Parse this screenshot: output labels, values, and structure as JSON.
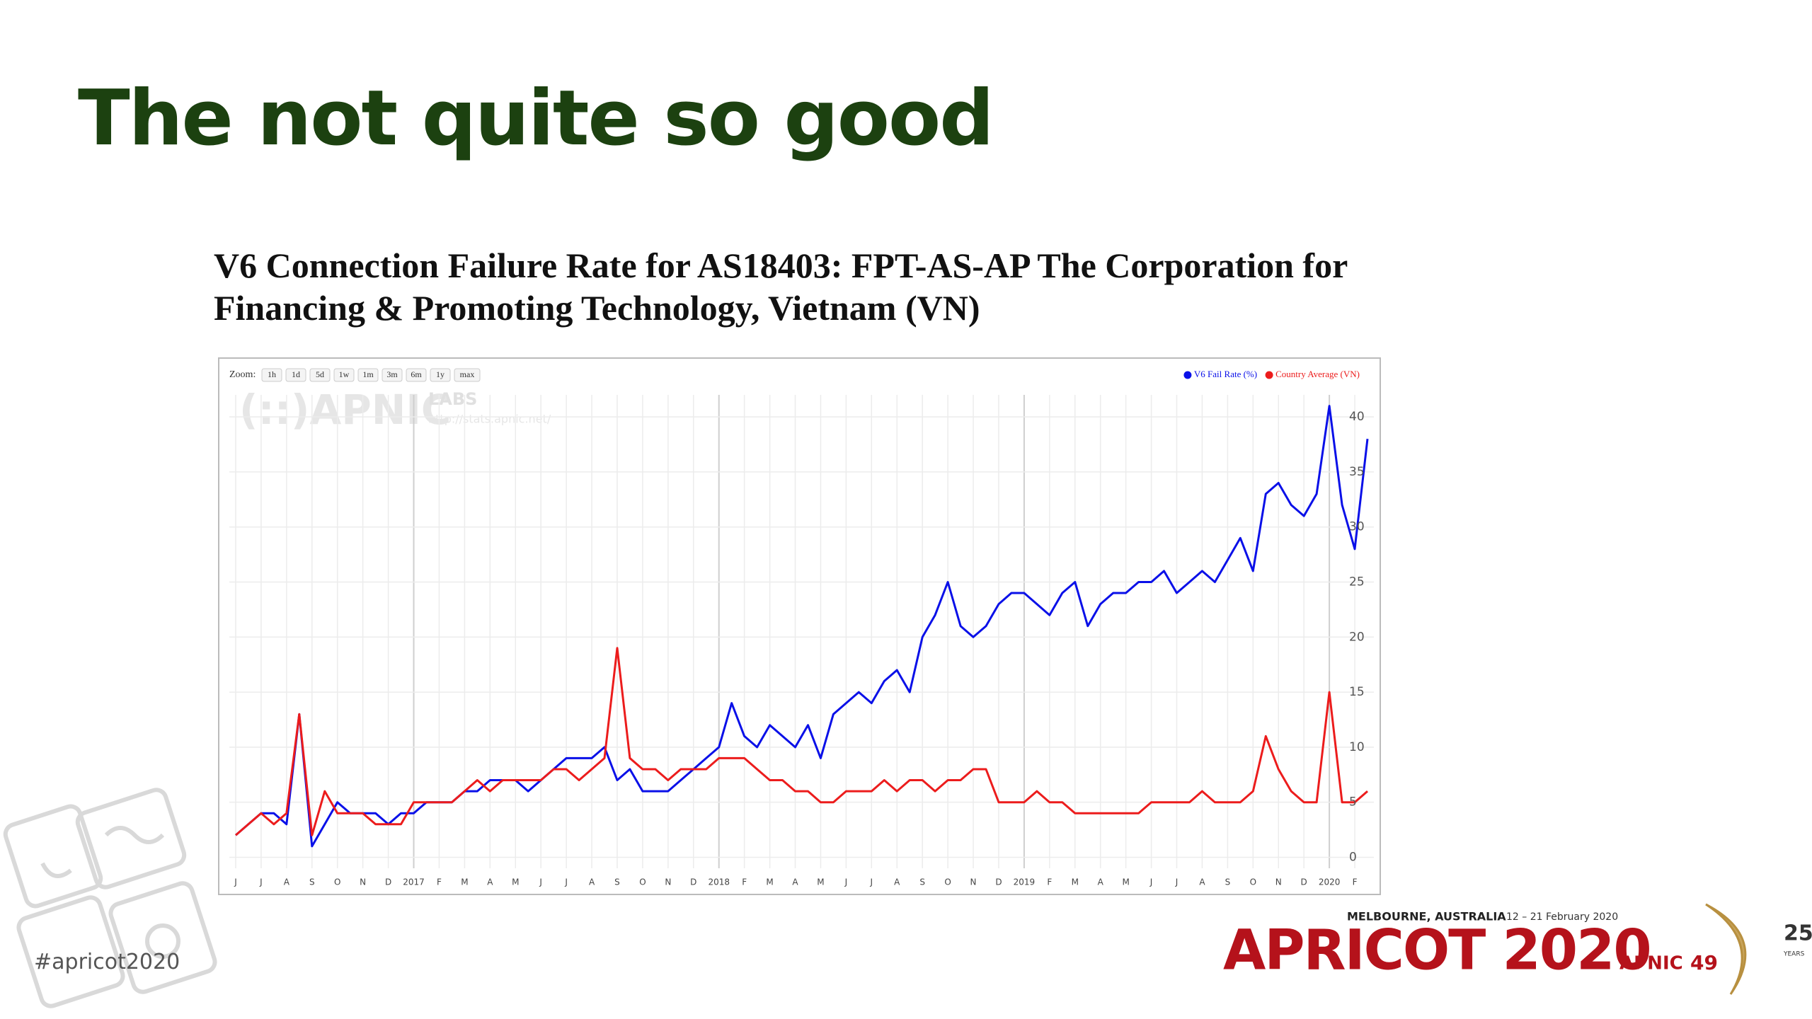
{
  "slide": {
    "title": "The not quite so good",
    "hashtag": "#apricot2020",
    "event": {
      "location": "MELBOURNE, AUSTRALIA",
      "dates": "12 – 21 February 2020",
      "name": "APRICOT 2020",
      "org": "APNIC",
      "number": "49",
      "anniversary": "25",
      "anniversary_label": "YEARS"
    }
  },
  "zoom": {
    "label": "Zoom:",
    "buttons": [
      "1h",
      "1d",
      "5d",
      "1w",
      "1m",
      "3m",
      "6m",
      "1y",
      "max"
    ]
  },
  "watermark": {
    "logo": "(::)APNIC",
    "labs": "LABS",
    "url": "http://stats.apnic.net/"
  },
  "chart_data": {
    "type": "line",
    "title": "V6 Connection Failure Rate for AS18403: FPT-AS-AP The Corporation for Financing & Promoting Technology, Vietnam (VN)",
    "categories": [
      "J",
      null,
      "J",
      null,
      "A",
      null,
      "S",
      null,
      "O",
      null,
      "N",
      null,
      "D",
      null,
      "2017",
      null,
      "F",
      null,
      "M",
      null,
      "A",
      null,
      "M",
      null,
      "J",
      null,
      "J",
      null,
      "A",
      null,
      "S",
      null,
      "O",
      null,
      "N",
      null,
      "D",
      null,
      "2018",
      null,
      "F",
      null,
      "M",
      null,
      "A",
      null,
      "M",
      null,
      "J",
      null,
      "J",
      null,
      "A",
      null,
      "S",
      null,
      "O",
      null,
      "N",
      null,
      "D",
      null,
      "2019",
      null,
      "F",
      null,
      "M",
      null,
      "A",
      null,
      "M",
      null,
      "J",
      null,
      "J",
      null,
      "A",
      null,
      "S",
      null,
      "O",
      null,
      "N",
      null,
      "D",
      null,
      "2020",
      null,
      "F",
      null
    ],
    "series": [
      {
        "name": "V6 Fail Rate (%)",
        "color": "#0a10e8",
        "values": [
          2,
          3,
          4,
          4,
          3,
          13,
          1,
          3,
          5,
          4,
          4,
          4,
          3,
          4,
          4,
          5,
          5,
          5,
          6,
          6,
          7,
          7,
          7,
          6,
          7,
          8,
          9,
          9,
          9,
          10,
          7,
          8,
          6,
          6,
          6,
          7,
          8,
          9,
          10,
          14,
          11,
          10,
          12,
          11,
          10,
          12,
          9,
          13,
          14,
          15,
          14,
          16,
          17,
          15,
          20,
          22,
          25,
          21,
          20,
          21,
          23,
          24,
          24,
          23,
          22,
          24,
          25,
          21,
          23,
          24,
          24,
          25,
          25,
          26,
          24,
          25,
          26,
          25,
          27,
          29,
          26,
          33,
          34,
          32,
          31,
          33,
          41,
          32,
          28,
          38
        ]
      },
      {
        "name": "Country Average (VN)",
        "color": "#ec1c1c",
        "values": [
          2,
          3,
          4,
          3,
          4,
          13,
          2,
          6,
          4,
          4,
          4,
          3,
          3,
          3,
          5,
          5,
          5,
          5,
          6,
          7,
          6,
          7,
          7,
          7,
          7,
          8,
          8,
          7,
          8,
          9,
          19,
          9,
          8,
          8,
          7,
          8,
          8,
          8,
          9,
          9,
          9,
          8,
          7,
          7,
          6,
          6,
          5,
          5,
          6,
          6,
          6,
          7,
          6,
          7,
          7,
          6,
          7,
          7,
          8,
          8,
          5,
          5,
          5,
          6,
          5,
          5,
          4,
          4,
          4,
          4,
          4,
          4,
          5,
          5,
          5,
          5,
          6,
          5,
          5,
          5,
          6,
          11,
          8,
          6,
          5,
          5,
          15,
          5,
          5,
          6
        ]
      }
    ],
    "ylim": [
      -1,
      42
    ],
    "yticks": [
      0,
      5,
      10,
      15,
      20,
      25,
      30,
      35,
      40
    ],
    "grid": true,
    "legend": "top-right"
  }
}
